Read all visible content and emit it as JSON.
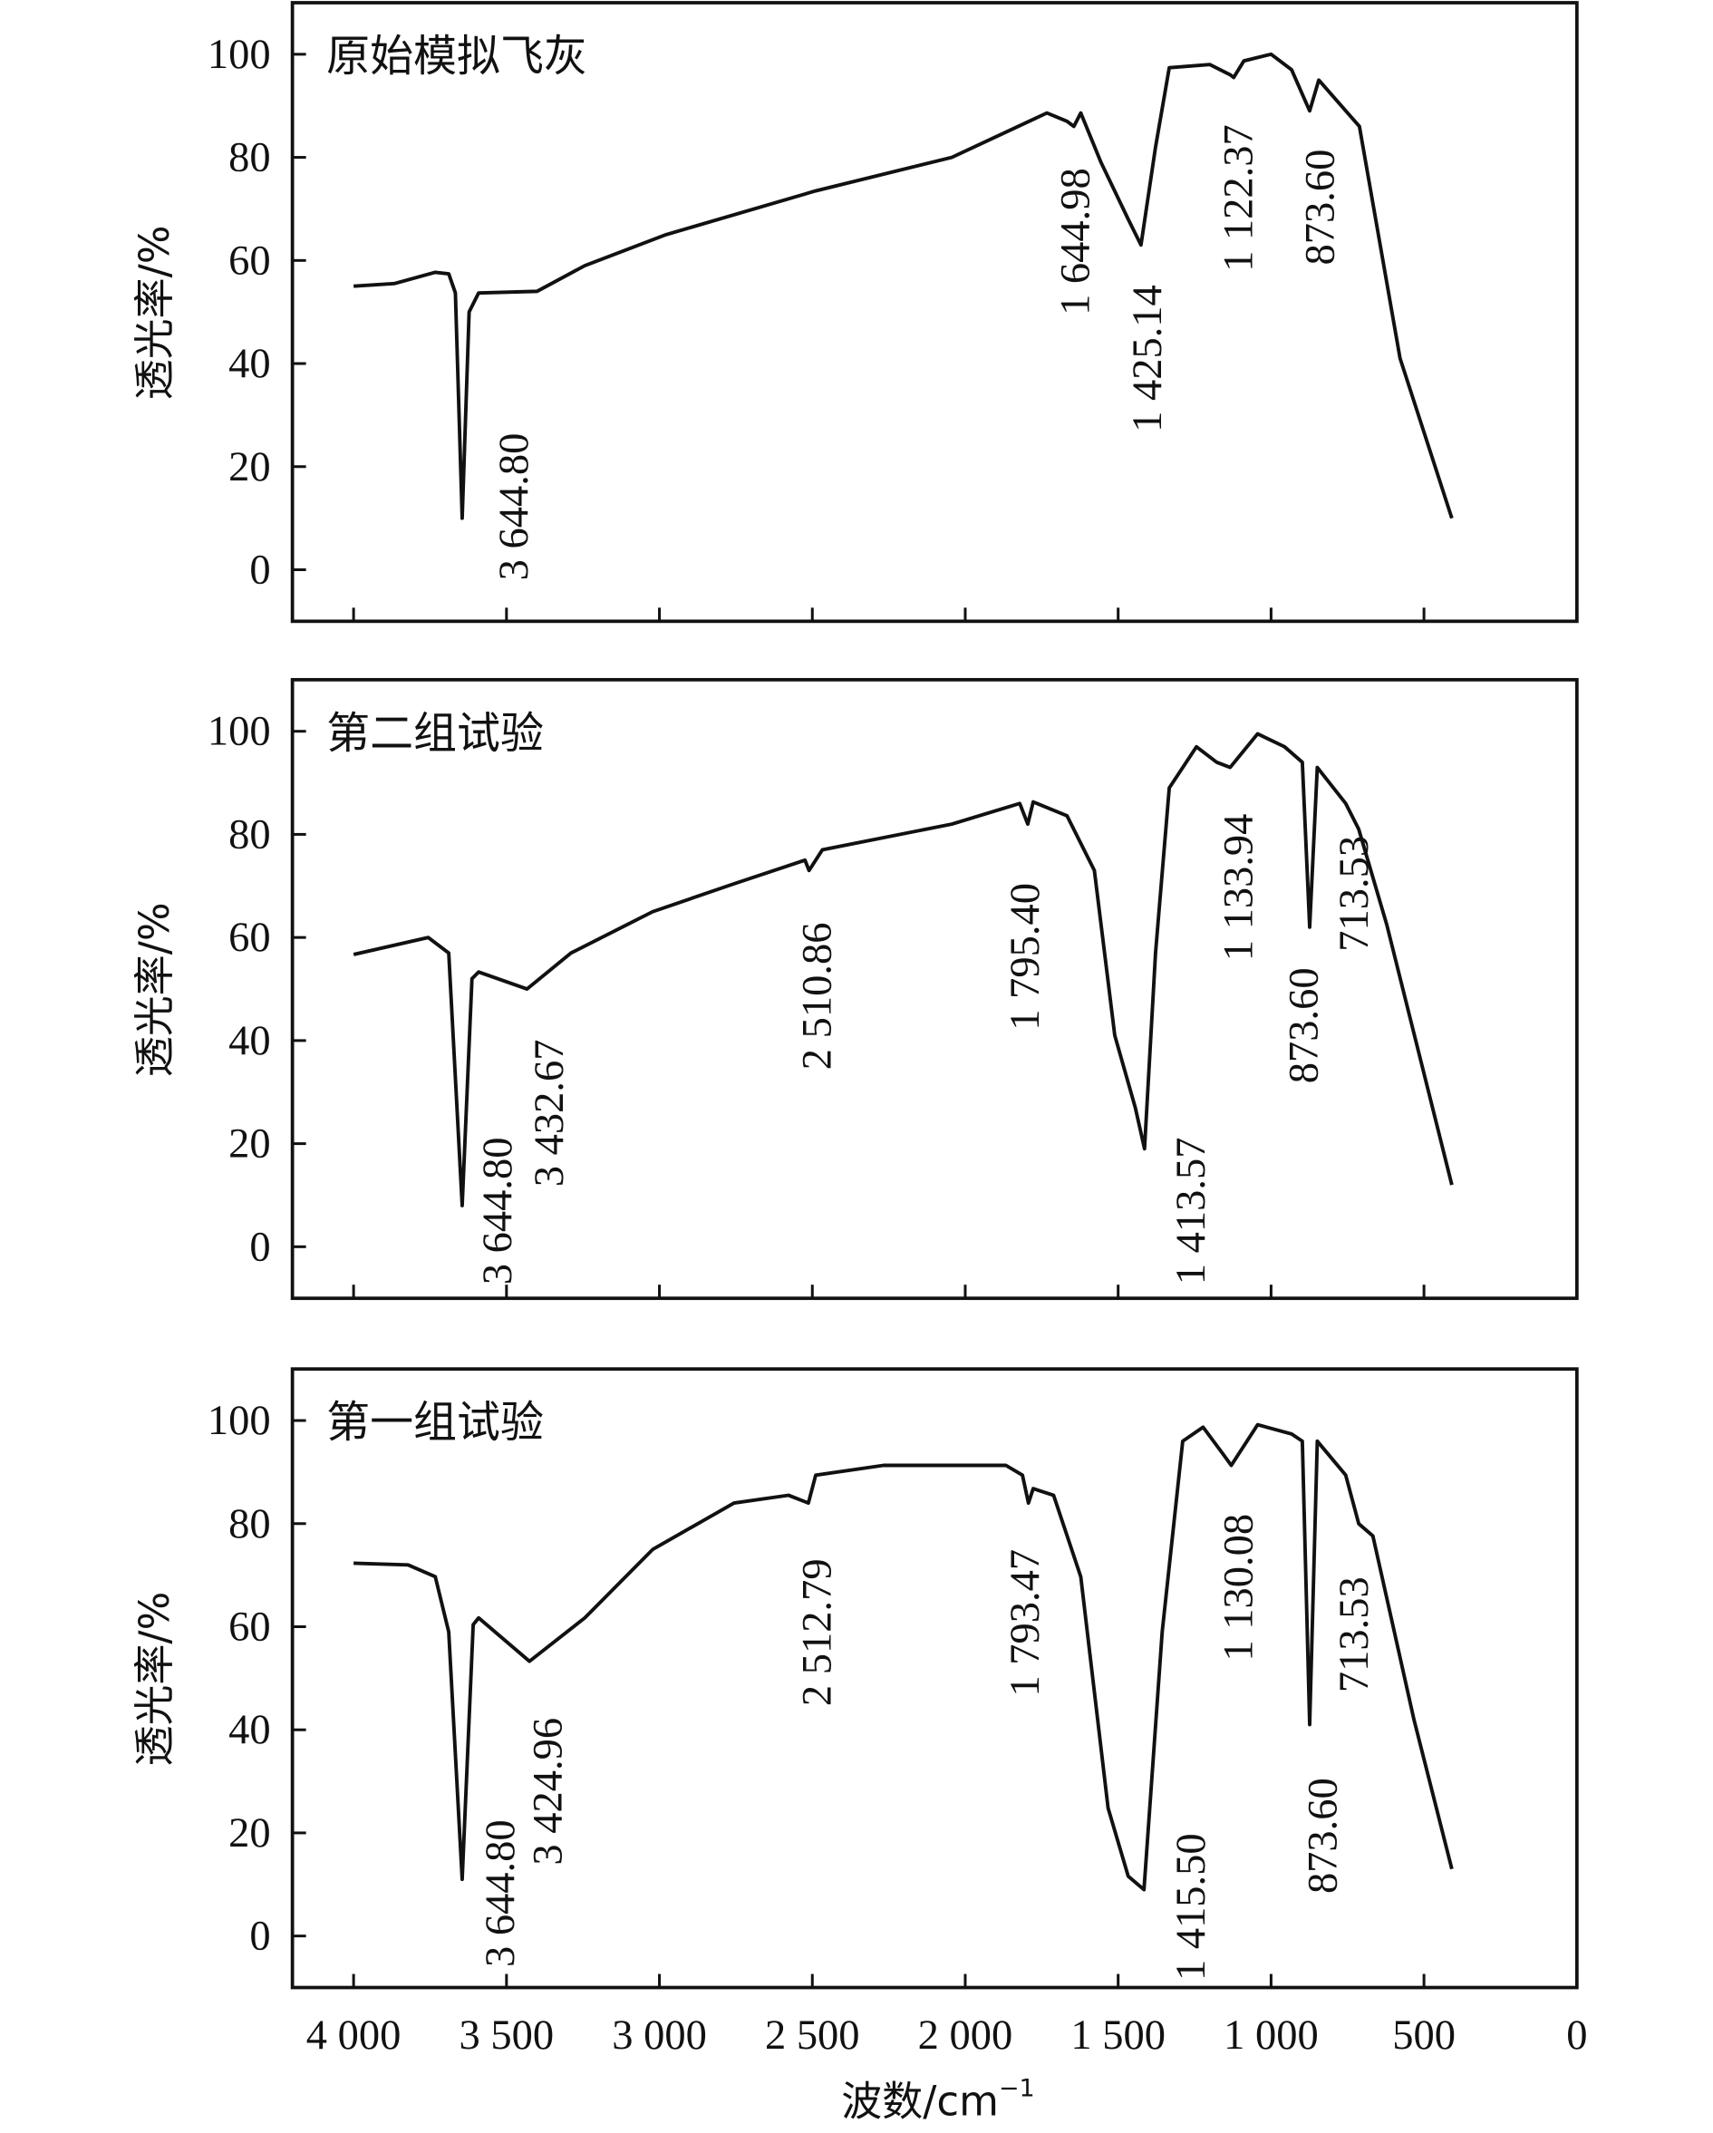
{
  "chart_data": {
    "type": "line",
    "xlabel": "波数/cm",
    "xlabel_sup": "−1",
    "ylabel": "透光率/%",
    "xlim": [
      4200,
      0
    ],
    "ylim": [
      -10,
      110
    ],
    "x_ticks": [
      4000,
      3500,
      3000,
      2500,
      2000,
      1500,
      1000,
      500,
      0
    ],
    "x_tick_labels": [
      "4 000",
      "3 500",
      "3 000",
      "2 500",
      "2 000",
      "1 500",
      "1 000",
      "500",
      "0"
    ],
    "y_ticks": [
      0,
      20,
      40,
      60,
      80,
      100
    ],
    "y_tick_labels": [
      "0",
      "20",
      "40",
      "60",
      "80",
      "100"
    ],
    "line_color": "#111111",
    "panels": [
      {
        "title": "原始模拟飞灰",
        "peak_labels": [
          "3 644.80",
          "1 644.98",
          "1 425.14",
          "1 122.37",
          "873.60"
        ],
        "points": [
          [
            4000,
            55
          ],
          [
            3867,
            55.5
          ],
          [
            3733,
            57.7
          ],
          [
            3689,
            57.4
          ],
          [
            3667,
            53.7
          ],
          [
            3644.8,
            10
          ],
          [
            3622,
            50
          ],
          [
            3591,
            53.7
          ],
          [
            3400,
            54
          ],
          [
            3244,
            59
          ],
          [
            2978,
            65
          ],
          [
            2489,
            73.5
          ],
          [
            2044,
            80
          ],
          [
            1733,
            88.6
          ],
          [
            1667,
            87
          ],
          [
            1644.98,
            86
          ],
          [
            1622,
            88.6
          ],
          [
            1556,
            79
          ],
          [
            1467,
            68
          ],
          [
            1425.14,
            63
          ],
          [
            1378,
            82
          ],
          [
            1333,
            97.4
          ],
          [
            1200,
            98
          ],
          [
            1133,
            96
          ],
          [
            1122.37,
            95.5
          ],
          [
            1089,
            98.7
          ],
          [
            1000,
            100
          ],
          [
            933,
            97
          ],
          [
            873.6,
            89
          ],
          [
            844,
            95
          ],
          [
            711,
            86
          ],
          [
            578,
            41
          ],
          [
            409,
            10
          ]
        ]
      },
      {
        "title": "第二组试验",
        "peak_labels": [
          "3 644.80",
          "3 432.67",
          "2 510.86",
          "1 795.40",
          "1 413.57",
          "1 133.94",
          "873.60",
          "713.53"
        ],
        "points": [
          [
            4000,
            56.7
          ],
          [
            3756,
            60
          ],
          [
            3689,
            57
          ],
          [
            3644.8,
            8
          ],
          [
            3613,
            52
          ],
          [
            3591,
            53.3
          ],
          [
            3432.67,
            50
          ],
          [
            3289,
            57
          ],
          [
            3022,
            65
          ],
          [
            2756,
            70.4
          ],
          [
            2524,
            75
          ],
          [
            2510.86,
            73
          ],
          [
            2467,
            77
          ],
          [
            2044,
            82
          ],
          [
            1822,
            86
          ],
          [
            1795.4,
            82
          ],
          [
            1778,
            86.3
          ],
          [
            1667,
            83.6
          ],
          [
            1578,
            73
          ],
          [
            1511,
            41
          ],
          [
            1444,
            27
          ],
          [
            1413.57,
            19
          ],
          [
            1378,
            57
          ],
          [
            1333,
            89
          ],
          [
            1244,
            97
          ],
          [
            1178,
            94
          ],
          [
            1133.94,
            93
          ],
          [
            1044,
            99.5
          ],
          [
            956,
            97
          ],
          [
            898,
            94
          ],
          [
            873.6,
            62
          ],
          [
            849,
            93
          ],
          [
            756,
            86
          ],
          [
            713.53,
            81
          ],
          [
            622,
            62.5
          ],
          [
            409,
            12
          ]
        ]
      },
      {
        "title": "第一组试验",
        "peak_labels": [
          "3 644.80",
          "3 424.96",
          "2 512.79",
          "1 793.47",
          "1 415.50",
          "1 130.08",
          "713.53",
          "873.60"
        ],
        "points": [
          [
            4000,
            72.3
          ],
          [
            3822,
            72
          ],
          [
            3733,
            69.7
          ],
          [
            3689,
            59
          ],
          [
            3644.8,
            11
          ],
          [
            3609,
            60.4
          ],
          [
            3591,
            61.7
          ],
          [
            3424.96,
            53.3
          ],
          [
            3244,
            61.7
          ],
          [
            3022,
            75
          ],
          [
            2756,
            84
          ],
          [
            2578,
            85.5
          ],
          [
            2512.79,
            84
          ],
          [
            2489,
            89.4
          ],
          [
            2267,
            91.3
          ],
          [
            1867,
            91.3
          ],
          [
            1813,
            89.4
          ],
          [
            1793.47,
            84
          ],
          [
            1778,
            86.8
          ],
          [
            1711,
            85.5
          ],
          [
            1622,
            69.7
          ],
          [
            1533,
            24.8
          ],
          [
            1467,
            11.6
          ],
          [
            1415.5,
            9
          ],
          [
            1356,
            59
          ],
          [
            1289,
            96
          ],
          [
            1222,
            98.7
          ],
          [
            1156,
            93.4
          ],
          [
            1130.08,
            91.3
          ],
          [
            1044,
            99.2
          ],
          [
            933,
            97.4
          ],
          [
            898,
            96
          ],
          [
            873.6,
            41
          ],
          [
            849,
            96
          ],
          [
            756,
            89.4
          ],
          [
            713.53,
            80
          ],
          [
            667,
            77.6
          ],
          [
            533,
            42
          ],
          [
            409,
            13
          ]
        ]
      }
    ]
  }
}
